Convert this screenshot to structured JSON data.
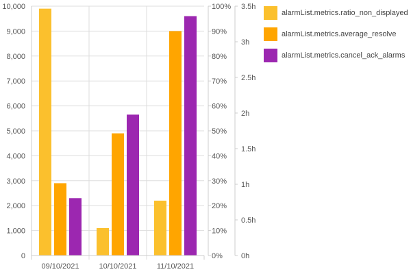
{
  "chart_data": {
    "type": "bar",
    "categories": [
      "09/10/2021",
      "10/10/2021",
      "11/10/2021"
    ],
    "series": [
      {
        "name": "alarmList.metrics.ratio_non_displayed",
        "color": "#FBC02D",
        "values": [
          9900,
          1100,
          2200
        ]
      },
      {
        "name": "alarmList.metrics.average_resolve",
        "color": "#FFA500",
        "values": [
          2900,
          4900,
          9000
        ]
      },
      {
        "name": "alarmList.metrics.cancel_ack_alarms",
        "color": "#9C27B0",
        "values": [
          2300,
          5650,
          9600
        ]
      }
    ],
    "axes": {
      "left": {
        "min": 0,
        "max": 10000,
        "ticks": [
          "0",
          "1,000",
          "2,000",
          "3,000",
          "4,000",
          "5,000",
          "6,000",
          "7,000",
          "8,000",
          "9,000",
          "10,000"
        ]
      },
      "right_percent": {
        "min": 0,
        "max": 100,
        "ticks": [
          "0%",
          "10%",
          "20%",
          "30%",
          "40%",
          "50%",
          "60%",
          "70%",
          "80%",
          "90%",
          "100%"
        ]
      },
      "right_hours": {
        "min": 0,
        "max": 3.5,
        "ticks": [
          "0h",
          "0.5h",
          "1h",
          "1.5h",
          "2h",
          "2.5h",
          "3h",
          "3.5h"
        ]
      }
    },
    "grid": true,
    "legend_position": "right"
  }
}
